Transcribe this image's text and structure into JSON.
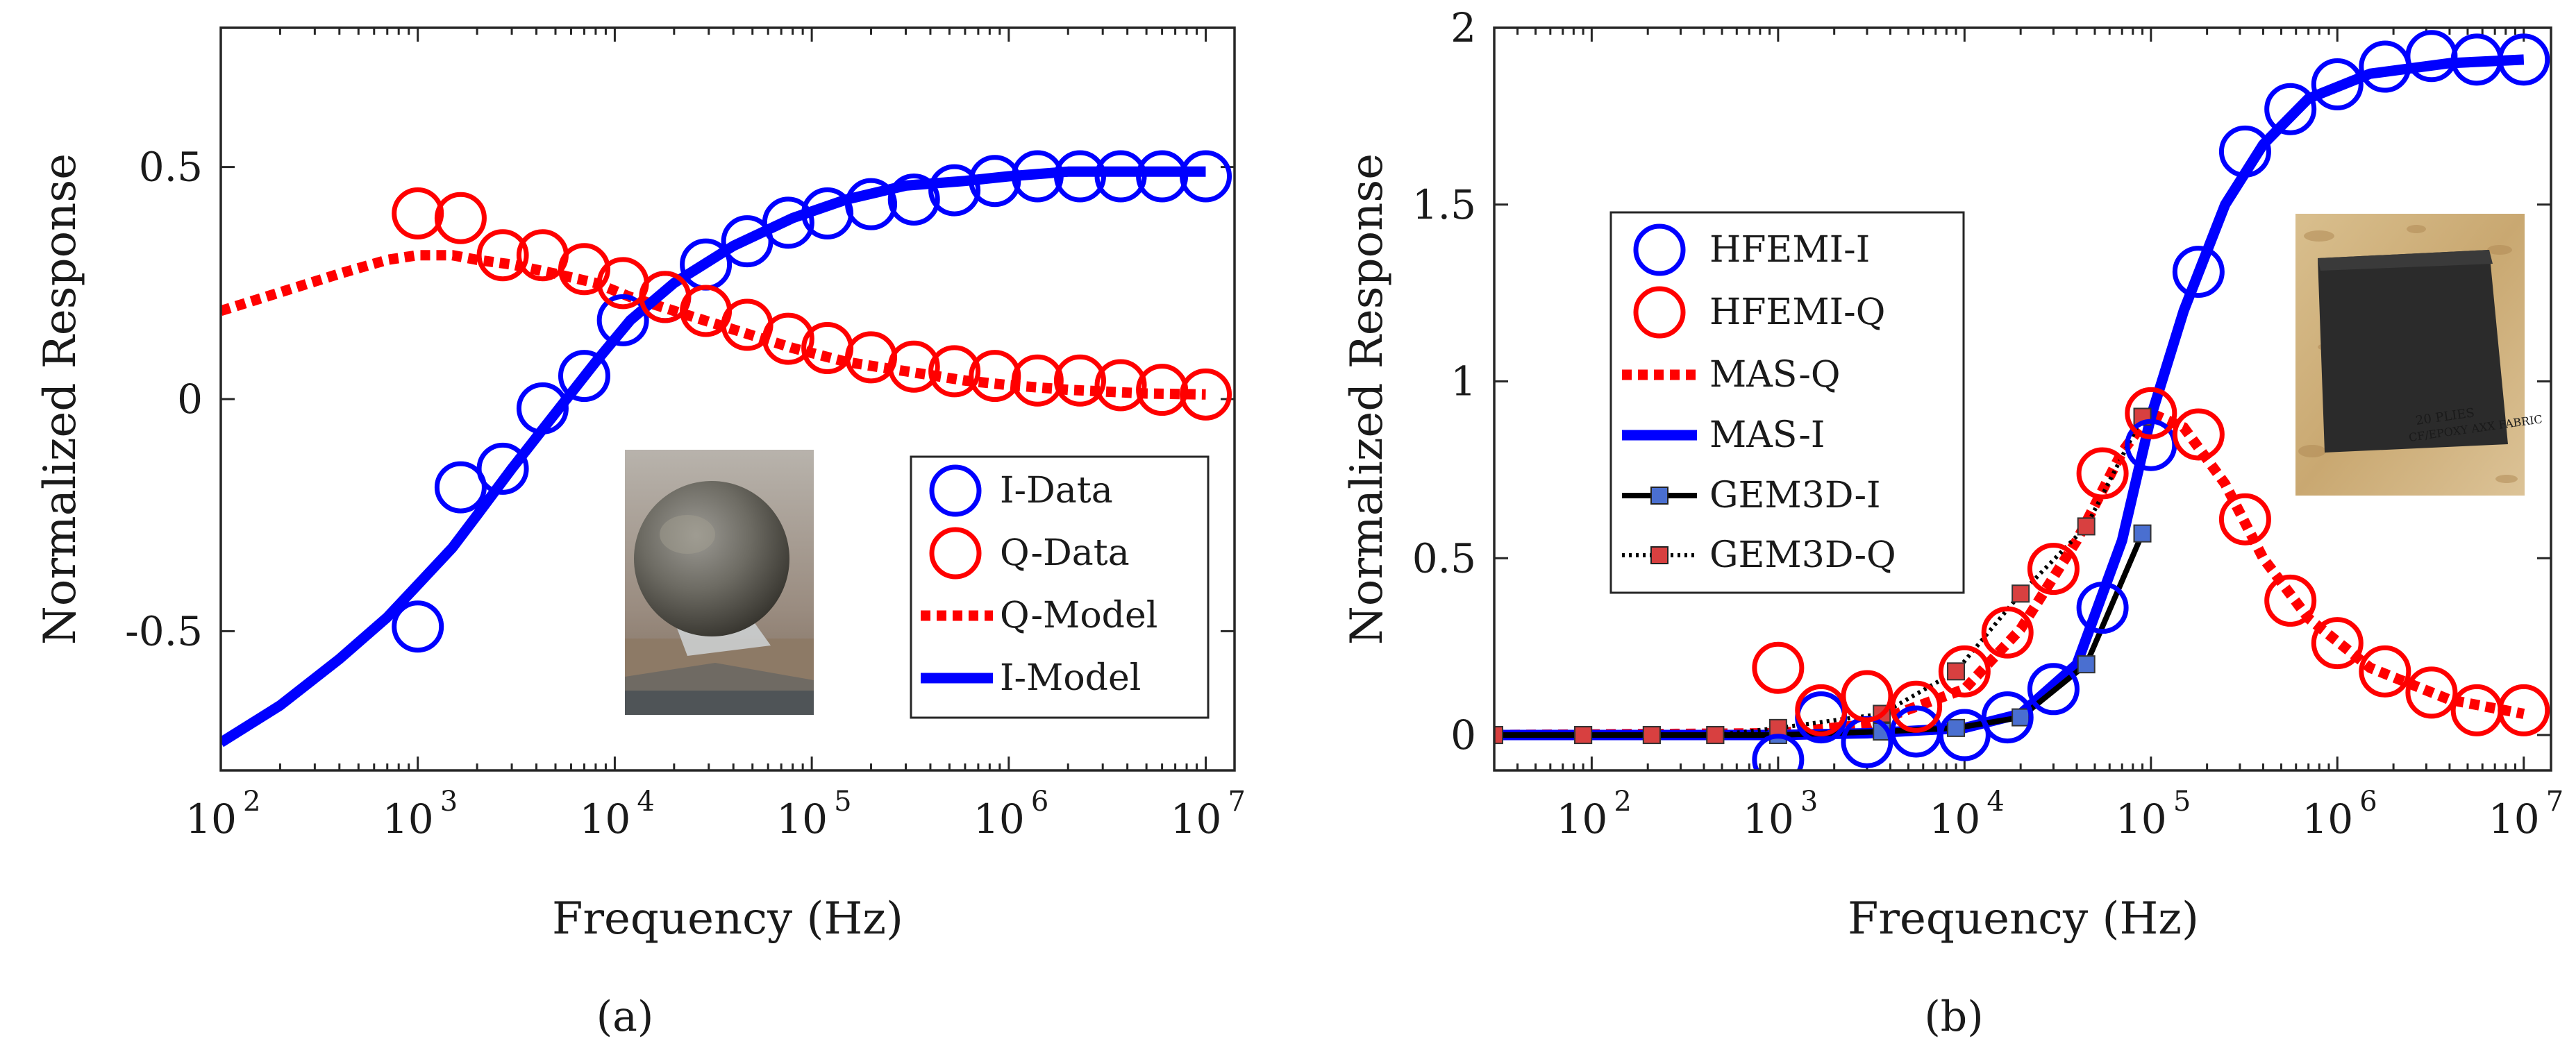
{
  "chart_data": [
    {
      "type": "line",
      "panel_label": "(a)",
      "x_scale": "log",
      "xlabel": "Frequency (Hz)",
      "ylabel": "Normalized Response",
      "xlim": [
        100,
        14000000
      ],
      "ylim": [
        -0.8,
        0.8
      ],
      "xticks": [
        {
          "base": "10",
          "exp": "2",
          "value": 100
        },
        {
          "base": "10",
          "exp": "3",
          "value": 1000
        },
        {
          "base": "10",
          "exp": "4",
          "value": 10000
        },
        {
          "base": "10",
          "exp": "5",
          "value": 100000
        },
        {
          "base": "10",
          "exp": "6",
          "value": 1000000
        },
        {
          "base": "10",
          "exp": "7",
          "value": 10000000
        }
      ],
      "yticks": [
        {
          "label": "-0.5",
          "value": -0.5
        },
        {
          "label": "0",
          "value": 0
        },
        {
          "label": "0.5",
          "value": 0.5
        }
      ],
      "legend": [
        "I-Data",
        "Q-Data",
        "Q-Model",
        "I-Model"
      ],
      "inset_image": "metal-sphere-photo",
      "series": [
        {
          "name": "I-Data",
          "kind": "markers",
          "color": "#0000ff",
          "x": [
            1000,
            1650,
            2700,
            4300,
            7000,
            11000,
            18000,
            29000,
            47000,
            76000,
            120000,
            200000,
            330000,
            530000,
            850000,
            1400000,
            2300000,
            3700000,
            6000000,
            10000000
          ],
          "y": [
            -0.49,
            -0.19,
            -0.15,
            -0.02,
            0.05,
            0.17,
            0.22,
            0.29,
            0.34,
            0.38,
            0.4,
            0.42,
            0.43,
            0.45,
            0.47,
            0.48,
            0.48,
            0.48,
            0.48,
            0.48
          ]
        },
        {
          "name": "Q-Data",
          "kind": "markers",
          "color": "#ff0000",
          "x": [
            1000,
            1650,
            2700,
            4300,
            7000,
            11000,
            18000,
            29000,
            47000,
            76000,
            120000,
            200000,
            330000,
            530000,
            850000,
            1400000,
            2300000,
            3700000,
            6000000,
            10000000
          ],
          "y": [
            0.4,
            0.39,
            0.31,
            0.31,
            0.28,
            0.25,
            0.22,
            0.19,
            0.16,
            0.13,
            0.11,
            0.09,
            0.07,
            0.06,
            0.05,
            0.04,
            0.04,
            0.03,
            0.02,
            0.01
          ]
        },
        {
          "name": "Q-Model",
          "kind": "dotted-line",
          "color": "#ff0000",
          "x": [
            100,
            200,
            400,
            700,
            1000,
            1500,
            2000,
            3000,
            5000,
            8000,
            12000,
            20000,
            40000,
            80000,
            150000,
            300000,
            600000,
            1000000,
            2000000,
            5000000,
            10000000
          ],
          "y": [
            0.19,
            0.23,
            0.27,
            0.3,
            0.31,
            0.31,
            0.3,
            0.29,
            0.27,
            0.25,
            0.22,
            0.19,
            0.15,
            0.11,
            0.08,
            0.06,
            0.04,
            0.03,
            0.02,
            0.012,
            0.01
          ]
        },
        {
          "name": "I-Model",
          "kind": "solid-line",
          "color": "#0000ff",
          "x": [
            100,
            200,
            400,
            700,
            1000,
            1500,
            2000,
            3000,
            5000,
            8000,
            12000,
            20000,
            40000,
            80000,
            150000,
            300000,
            600000,
            1000000,
            2000000,
            5000000,
            10000000
          ],
          "y": [
            -0.74,
            -0.66,
            -0.56,
            -0.47,
            -0.4,
            -0.32,
            -0.25,
            -0.15,
            -0.03,
            0.08,
            0.17,
            0.25,
            0.33,
            0.39,
            0.43,
            0.46,
            0.47,
            0.48,
            0.49,
            0.49,
            0.49
          ]
        }
      ]
    },
    {
      "type": "line",
      "panel_label": "(b)",
      "x_scale": "log",
      "xlabel": "Frequency (Hz)",
      "ylabel": "Normalized Response",
      "xlim": [
        30,
        14000000
      ],
      "ylim": [
        -0.1,
        2
      ],
      "xticks": [
        {
          "base": "10",
          "exp": "2",
          "value": 100
        },
        {
          "base": "10",
          "exp": "3",
          "value": 1000
        },
        {
          "base": "10",
          "exp": "4",
          "value": 10000
        },
        {
          "base": "10",
          "exp": "5",
          "value": 100000
        },
        {
          "base": "10",
          "exp": "6",
          "value": 1000000
        },
        {
          "base": "10",
          "exp": "7",
          "value": 10000000
        }
      ],
      "yticks": [
        {
          "label": "0",
          "value": 0
        },
        {
          "label": "0.5",
          "value": 0.5
        },
        {
          "label": "1",
          "value": 1
        },
        {
          "label": "1.5",
          "value": 1.5
        },
        {
          "label": "2",
          "value": 2
        }
      ],
      "legend": [
        "HFEMI-I",
        "HFEMI-Q",
        "MAS-Q",
        "MAS-I",
        "GEM3D-I",
        "GEM3D-Q"
      ],
      "inset_image": "carbon-fiber-panel-photo",
      "series": [
        {
          "name": "HFEMI-I",
          "kind": "markers",
          "color": "#0000ff",
          "x": [
            1000,
            1700,
            3000,
            5500,
            10000,
            17000,
            30000,
            55000,
            100000,
            180000,
            320000,
            560000,
            1000000,
            1800000,
            3200000,
            5600000,
            10000000
          ],
          "y": [
            -0.07,
            0.05,
            -0.02,
            0.01,
            0.0,
            0.05,
            0.13,
            0.36,
            0.82,
            1.31,
            1.65,
            1.77,
            1.84,
            1.89,
            1.92,
            1.91,
            1.91
          ]
        },
        {
          "name": "HFEMI-Q",
          "kind": "markers",
          "color": "#ff0000",
          "x": [
            1000,
            1700,
            3000,
            5500,
            10000,
            17000,
            30000,
            55000,
            100000,
            180000,
            320000,
            560000,
            1000000,
            1800000,
            3200000,
            5600000,
            10000000
          ],
          "y": [
            0.19,
            0.07,
            0.11,
            0.08,
            0.18,
            0.29,
            0.47,
            0.74,
            0.91,
            0.85,
            0.61,
            0.38,
            0.26,
            0.18,
            0.12,
            0.07,
            0.07
          ]
        },
        {
          "name": "MAS-Q",
          "kind": "dotted-line",
          "color": "#ff0000",
          "x": [
            30,
            1000,
            3000,
            10000,
            20000,
            40000,
            70000,
            100000,
            150000,
            250000,
            400000,
            700000,
            1500000,
            4000000,
            10000000
          ],
          "y": [
            0,
            0.005,
            0.03,
            0.13,
            0.3,
            0.55,
            0.8,
            0.91,
            0.87,
            0.71,
            0.5,
            0.33,
            0.19,
            0.1,
            0.06
          ]
        },
        {
          "name": "MAS-I",
          "kind": "solid-line",
          "color": "#0000ff",
          "x": [
            30,
            1000,
            3000,
            10000,
            20000,
            40000,
            70000,
            100000,
            150000,
            250000,
            400000,
            700000,
            1500000,
            4000000,
            10000000
          ],
          "y": [
            0,
            0.0,
            0.005,
            0.02,
            0.06,
            0.2,
            0.55,
            0.9,
            1.2,
            1.5,
            1.67,
            1.8,
            1.87,
            1.9,
            1.91
          ]
        },
        {
          "name": "GEM3D-I",
          "kind": "square-line",
          "color": "#000000",
          "marker_color": "#4a6fd0",
          "x": [
            30,
            90,
            210,
            460,
            1000,
            3600,
            9000,
            20000,
            45000,
            90000
          ],
          "y": [
            0,
            0,
            0,
            0,
            0,
            0.01,
            0.02,
            0.05,
            0.2,
            0.57
          ]
        },
        {
          "name": "GEM3D-Q",
          "kind": "square-dotted",
          "color": "#000000",
          "marker_color": "#d84040",
          "x": [
            30,
            90,
            210,
            460,
            1000,
            3600,
            9000,
            20000,
            45000,
            90000
          ],
          "y": [
            0,
            0,
            0,
            0,
            0.02,
            0.06,
            0.18,
            0.4,
            0.59,
            0.9
          ]
        }
      ]
    }
  ]
}
